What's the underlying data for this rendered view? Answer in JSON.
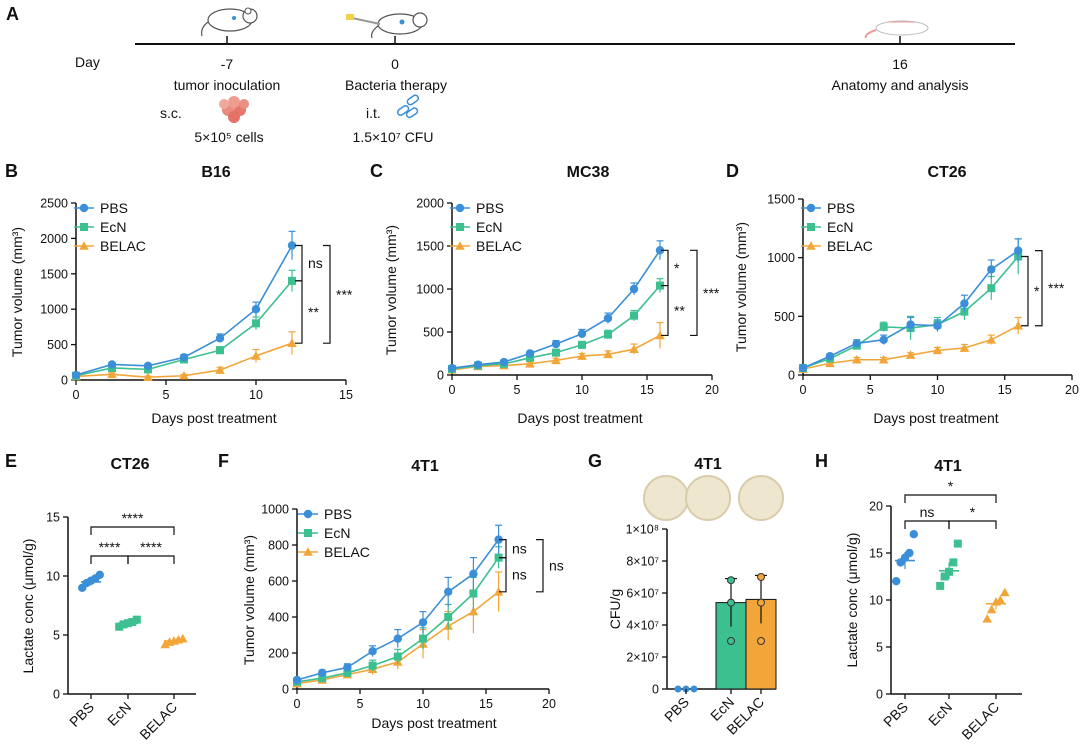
{
  "colors": {
    "PBS": "#3a8fd8",
    "EcN": "#3cc08f",
    "BELAC": "#f2a63a",
    "axis": "#111111",
    "plate": "#efe6cf",
    "plate_edge": "#d9ccab"
  },
  "timeline": {
    "panel": "A",
    "day_label": "Day",
    "events": [
      {
        "day": "-7",
        "label": "tumor inoculation",
        "route": "s.c.",
        "dose": "5×10⁵ cells",
        "icon": "mouse-icon"
      },
      {
        "day": "0",
        "label": "Bacteria therapy",
        "route": "i.t.",
        "dose": "1.5×10⁷ CFU",
        "icon": "mouse-injection-icon"
      },
      {
        "day": "16",
        "label": "Anatomy and analysis",
        "icon": "mouse-dissection-icon"
      }
    ]
  },
  "chart_data": [
    {
      "panel": "B",
      "type": "line",
      "title": "B16",
      "xlabel": "Days post treatment",
      "ylabel": "Tumor volume (mm³)",
      "xlim": [
        0,
        15
      ],
      "ylim": [
        0,
        2500
      ],
      "xticks": [
        0,
        5,
        10,
        15
      ],
      "yticks": [
        0,
        500,
        1000,
        1500,
        2000,
        2500
      ],
      "x": [
        0,
        2,
        4,
        6,
        8,
        10,
        12
      ],
      "series": [
        {
          "name": "PBS",
          "values": [
            70,
            220,
            200,
            320,
            590,
            1000,
            1900
          ],
          "err": [
            20,
            30,
            30,
            40,
            60,
            100,
            200
          ]
        },
        {
          "name": "EcN",
          "values": [
            60,
            170,
            150,
            290,
            420,
            800,
            1400
          ],
          "err": [
            20,
            30,
            30,
            30,
            50,
            90,
            150
          ]
        },
        {
          "name": "BELAC",
          "values": [
            50,
            80,
            40,
            60,
            140,
            340,
            520
          ],
          "err": [
            15,
            20,
            15,
            20,
            40,
            90,
            160
          ]
        }
      ],
      "legend": "top-left",
      "annotations": [
        {
          "pair": "PBS-EcN",
          "text": "ns"
        },
        {
          "pair": "EcN-BELAC",
          "text": "**"
        },
        {
          "pair": "PBS-BELAC",
          "text": "***"
        }
      ]
    },
    {
      "panel": "C",
      "type": "line",
      "title": "MC38",
      "xlabel": "Days post treatment",
      "ylabel": "Tumor volume (mm³)",
      "xlim": [
        0,
        20
      ],
      "ylim": [
        0,
        2000
      ],
      "xticks": [
        0,
        5,
        10,
        15,
        20
      ],
      "yticks": [
        0,
        500,
        1000,
        1500,
        2000
      ],
      "x": [
        0,
        2,
        4,
        6,
        8,
        10,
        12,
        14,
        16
      ],
      "series": [
        {
          "name": "PBS",
          "values": [
            80,
            120,
            150,
            250,
            360,
            480,
            660,
            1000,
            1450
          ],
          "err": [
            20,
            20,
            25,
            30,
            40,
            50,
            60,
            70,
            110
          ]
        },
        {
          "name": "EcN",
          "values": [
            70,
            110,
            130,
            200,
            260,
            350,
            470,
            690,
            1040
          ],
          "err": [
            15,
            20,
            20,
            25,
            30,
            40,
            50,
            60,
            80
          ]
        },
        {
          "name": "BELAC",
          "values": [
            60,
            100,
            110,
            130,
            170,
            220,
            240,
            300,
            460
          ],
          "err": [
            15,
            15,
            20,
            20,
            25,
            30,
            40,
            60,
            150
          ]
        }
      ],
      "legend": "top-left",
      "annotations": [
        {
          "pair": "PBS-EcN",
          "text": "*"
        },
        {
          "pair": "EcN-BELAC",
          "text": "**"
        },
        {
          "pair": "PBS-BELAC",
          "text": "***"
        }
      ]
    },
    {
      "panel": "D",
      "type": "line",
      "title": "CT26",
      "xlabel": "Days post treatment",
      "ylabel": "Tumor volume (mm³)",
      "xlim": [
        0,
        20
      ],
      "ylim": [
        0,
        1500
      ],
      "xticks": [
        0,
        5,
        10,
        15,
        20
      ],
      "yticks": [
        0,
        500,
        1000,
        1500
      ],
      "x": [
        0,
        2,
        4,
        6,
        8,
        10,
        12,
        14,
        16
      ],
      "series": [
        {
          "name": "PBS",
          "values": [
            60,
            160,
            270,
            300,
            430,
            420,
            610,
            900,
            1060
          ],
          "err": [
            15,
            20,
            30,
            40,
            60,
            50,
            70,
            80,
            100
          ]
        },
        {
          "name": "EcN",
          "values": [
            60,
            140,
            250,
            410,
            400,
            430,
            540,
            740,
            1010
          ],
          "err": [
            15,
            20,
            30,
            40,
            100,
            60,
            70,
            100,
            150
          ]
        },
        {
          "name": "BELAC",
          "values": [
            50,
            100,
            130,
            130,
            170,
            210,
            230,
            300,
            420
          ],
          "err": [
            10,
            15,
            20,
            20,
            20,
            25,
            30,
            40,
            70
          ]
        }
      ],
      "legend": "top-left",
      "annotations": [
        {
          "pair": "EcN-BELAC",
          "text": "*"
        },
        {
          "pair": "PBS-BELAC",
          "text": "***"
        }
      ]
    },
    {
      "panel": "E",
      "type": "scatter",
      "title": "CT26",
      "ylabel": "Lactate conc (μmol/g)",
      "categories": [
        "PBS",
        "EcN",
        "BELAC"
      ],
      "ylim": [
        0,
        15
      ],
      "yticks": [
        0,
        5,
        10,
        15
      ],
      "series": [
        {
          "name": "PBS",
          "points": [
            9.0,
            9.4,
            9.6,
            9.8,
            10.1
          ],
          "mean": 9.5,
          "err": 0.3
        },
        {
          "name": "EcN",
          "points": [
            5.7,
            5.9,
            6.0,
            6.1,
            6.3
          ],
          "mean": 6.0,
          "err": 0.2
        },
        {
          "name": "BELAC",
          "points": [
            4.2,
            4.4,
            4.5,
            4.6,
            4.7
          ],
          "mean": 4.5,
          "err": 0.2
        }
      ],
      "annotations": [
        {
          "pair": "PBS-EcN",
          "text": "****"
        },
        {
          "pair": "EcN-BELAC",
          "text": "****"
        },
        {
          "pair": "PBS-BELAC",
          "text": "****"
        }
      ]
    },
    {
      "panel": "F",
      "type": "line",
      "title": "4T1",
      "xlabel": "Days post treatment",
      "ylabel": "Tumor volume (mm³)",
      "xlim": [
        0,
        20
      ],
      "ylim": [
        0,
        1000
      ],
      "xticks": [
        0,
        5,
        10,
        15,
        20
      ],
      "yticks": [
        0,
        200,
        400,
        600,
        800,
        1000
      ],
      "x": [
        0,
        2,
        4,
        6,
        8,
        10,
        12,
        14,
        16
      ],
      "series": [
        {
          "name": "PBS",
          "values": [
            50,
            90,
            120,
            210,
            280,
            370,
            540,
            640,
            830
          ],
          "err": [
            10,
            15,
            20,
            30,
            50,
            60,
            80,
            90,
            80
          ]
        },
        {
          "name": "EcN",
          "values": [
            40,
            60,
            90,
            130,
            180,
            280,
            400,
            530,
            730
          ],
          "err": [
            10,
            15,
            20,
            30,
            40,
            60,
            70,
            90,
            60
          ]
        },
        {
          "name": "BELAC",
          "values": [
            30,
            50,
            80,
            110,
            150,
            250,
            350,
            430,
            540
          ],
          "err": [
            10,
            15,
            20,
            30,
            40,
            80,
            80,
            120,
            110
          ]
        }
      ],
      "legend": "top-left",
      "annotations": [
        {
          "pair": "PBS-EcN",
          "text": "ns"
        },
        {
          "pair": "EcN-BELAC",
          "text": "ns"
        },
        {
          "pair": "PBS-BELAC",
          "text": "ns"
        }
      ]
    },
    {
      "panel": "G",
      "type": "bar",
      "title": "4T1",
      "ylabel": "CFU/g",
      "categories": [
        "PBS",
        "EcN",
        "BELAC"
      ],
      "ylim": [
        0,
        100000000
      ],
      "ytick_labels": [
        "0",
        "2×10⁷",
        "4×10⁷",
        "6×10⁷",
        "8×10⁷",
        "1×10⁸"
      ],
      "values": [
        0,
        54000000,
        56000000
      ],
      "err": [
        0,
        15000000,
        15000000
      ],
      "points": [
        [
          0,
          0,
          0
        ],
        [
          68000000,
          54000000,
          30000000
        ],
        [
          70000000,
          54000000,
          30000000
        ]
      ]
    },
    {
      "panel": "H",
      "type": "scatter",
      "title": "4T1",
      "ylabel": "Lactate conc (μmol/g)",
      "categories": [
        "PBS",
        "EcN",
        "BELAC"
      ],
      "ylim": [
        0,
        20
      ],
      "yticks": [
        0,
        5,
        10,
        15,
        20
      ],
      "series": [
        {
          "name": "PBS",
          "points": [
            12.0,
            14.0,
            14.5,
            15.0,
            17.0
          ],
          "mean": 14.2,
          "err": 0.9
        },
        {
          "name": "EcN",
          "points": [
            11.5,
            12.5,
            13.0,
            14.0,
            16.0
          ],
          "mean": 13.1,
          "err": 0.9
        },
        {
          "name": "BELAC",
          "points": [
            8.0,
            9.0,
            9.8,
            10.0,
            10.8
          ],
          "mean": 9.6,
          "err": 0.6
        }
      ],
      "annotations": [
        {
          "pair": "PBS-EcN",
          "text": "ns"
        },
        {
          "pair": "EcN-BELAC",
          "text": "*"
        },
        {
          "pair": "PBS-BELAC",
          "text": "*"
        }
      ]
    }
  ]
}
